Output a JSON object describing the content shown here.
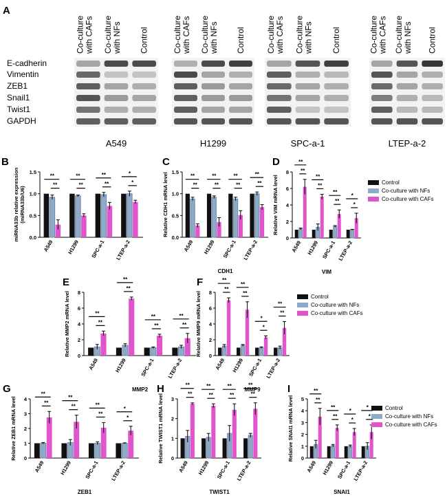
{
  "figure": {
    "colors": {
      "control": "#111111",
      "nfs": "#8fa9c9",
      "cafs": "#e055cc",
      "axis": "#000000"
    },
    "significance_label": "**",
    "legend_labels": [
      "Control",
      "Co-culture with NFs",
      "Co-culture with CAFs"
    ]
  },
  "blot": {
    "panel_letter": "A",
    "lane_labels": [
      "Co-culture with CAFs",
      "Co-culture with NFs",
      "Control"
    ],
    "protein_labels": [
      "E-cadherin",
      "Vimentin",
      "ZEB1",
      "Snail1",
      "Twist1",
      "GAPDH"
    ],
    "cell_lines": [
      "A549",
      "H1299",
      "SPC-a-1",
      "LTEP-a-2"
    ],
    "band_intensities": [
      [
        [
          0.35,
          0.8,
          0.8
        ],
        [
          0.65,
          0.2,
          0.2
        ],
        [
          0.7,
          0.35,
          0.3
        ],
        [
          0.75,
          0.4,
          0.35
        ],
        [
          0.6,
          0.3,
          0.3
        ],
        [
          0.7,
          0.7,
          0.7
        ]
      ],
      [
        [
          0.3,
          0.8,
          0.85
        ],
        [
          0.8,
          0.35,
          0.3
        ],
        [
          0.7,
          0.4,
          0.35
        ],
        [
          0.7,
          0.4,
          0.4
        ],
        [
          0.7,
          0.35,
          0.35
        ],
        [
          0.75,
          0.75,
          0.75
        ]
      ],
      [
        [
          0.35,
          0.75,
          0.85
        ],
        [
          0.7,
          0.3,
          0.25
        ],
        [
          0.65,
          0.35,
          0.3
        ],
        [
          0.6,
          0.35,
          0.3
        ],
        [
          0.7,
          0.2,
          0.2
        ],
        [
          0.75,
          0.75,
          0.75
        ]
      ],
      [
        [
          0.35,
          0.75,
          0.9
        ],
        [
          0.75,
          0.35,
          0.3
        ],
        [
          0.65,
          0.35,
          0.3
        ],
        [
          0.55,
          0.3,
          0.25
        ],
        [
          0.7,
          0.25,
          0.25
        ],
        [
          0.75,
          0.75,
          0.75
        ]
      ]
    ]
  },
  "chart_data": [
    {
      "type": "bar",
      "panel": "B",
      "categories": [
        "A549",
        "H1299",
        "SPC-a-1",
        "LTEP-a-2"
      ],
      "series": [
        {
          "name": "Control",
          "values": [
            1.0,
            1.0,
            1.0,
            1.0
          ],
          "errors": [
            0,
            0,
            0,
            0
          ]
        },
        {
          "name": "Co-culture with NFs",
          "values": [
            0.92,
            0.95,
            0.98,
            1.0
          ],
          "errors": [
            0.05,
            0.02,
            0.05,
            0.06
          ]
        },
        {
          "name": "Co-culture with CAFs",
          "values": [
            0.29,
            0.5,
            0.72,
            0.81
          ],
          "errors": [
            0.11,
            0.04,
            0.08,
            0.04
          ]
        }
      ],
      "ylabel": "miRNA33b relative expression (miRNA33b/U6)",
      "ylabel_lines": [
        "miRNA33b relative expression",
        "(miRNA33b/U6)"
      ],
      "xlabel": "",
      "ylim": [
        0,
        1.5
      ],
      "yticks": [
        "0.0",
        "0.5",
        "1.0",
        "1.5"
      ],
      "significance": [
        [
          "**",
          "**"
        ],
        [
          "**",
          "**"
        ],
        [
          "**",
          "**"
        ],
        [
          "*",
          "*"
        ]
      ]
    },
    {
      "type": "bar",
      "panel": "C",
      "categories": [
        "A549",
        "H1299",
        "SPC-a-1",
        "LTEP-a-2"
      ],
      "series": [
        {
          "name": "Control",
          "values": [
            1.0,
            1.0,
            1.0,
            1.0
          ],
          "errors": [
            0,
            0,
            0,
            0
          ]
        },
        {
          "name": "Co-culture with NFs",
          "values": [
            0.88,
            0.92,
            0.88,
            1.0
          ],
          "errors": [
            0.04,
            0.03,
            0.04,
            0.04
          ]
        },
        {
          "name": "Co-culture with CAFs",
          "values": [
            0.27,
            0.35,
            0.51,
            0.69
          ],
          "errors": [
            0.04,
            0.1,
            0.1,
            0.06
          ]
        }
      ],
      "ylabel": "Relative CDH1 mRNA level",
      "xlabel": "CDH1",
      "ylim": [
        0,
        1.5
      ],
      "yticks": [
        "0.0",
        "0.5",
        "1.0",
        "1.5"
      ],
      "significance": [
        [
          "**",
          "**"
        ],
        [
          "**",
          "**"
        ],
        [
          "**",
          "**"
        ],
        [
          "**",
          "**"
        ]
      ]
    },
    {
      "type": "bar",
      "panel": "D",
      "categories": [
        "A549",
        "H1299",
        "SPC-a-1",
        "LTEP-a-2"
      ],
      "series": [
        {
          "name": "Control",
          "values": [
            1.0,
            1.0,
            1.0,
            1.0
          ],
          "errors": [
            0,
            0,
            0,
            0
          ]
        },
        {
          "name": "Co-culture with NFs",
          "values": [
            1.1,
            1.3,
            1.4,
            1.0
          ],
          "errors": [
            0.1,
            0.4,
            0.1,
            0.05
          ]
        },
        {
          "name": "Co-culture with CAFs",
          "values": [
            6.2,
            5.0,
            2.9,
            2.4
          ],
          "errors": [
            0.9,
            0.3,
            0.5,
            0.6
          ]
        }
      ],
      "ylabel": "Relative VIM mRNA level",
      "xlabel": "VIM",
      "ylim": [
        0,
        8
      ],
      "yticks": [
        "0",
        "2",
        "4",
        "6",
        "8"
      ],
      "significance": [
        [
          "**",
          "**"
        ],
        [
          "**",
          "**"
        ],
        [
          "**",
          "**"
        ],
        [
          "*",
          "*"
        ]
      ]
    },
    {
      "type": "bar",
      "panel": "E",
      "categories": [
        "A549",
        "H1299",
        "SPC-a-1",
        "LTEP-a-2"
      ],
      "series": [
        {
          "name": "Control",
          "values": [
            1.0,
            1.0,
            1.0,
            1.0
          ],
          "errors": [
            0,
            0,
            0,
            0
          ]
        },
        {
          "name": "Co-culture with NFs",
          "values": [
            1.1,
            1.3,
            1.0,
            1.1
          ],
          "errors": [
            0.3,
            0.2,
            0.1,
            0.2
          ]
        },
        {
          "name": "Co-culture with CAFs",
          "values": [
            2.8,
            7.2,
            2.5,
            2.2
          ],
          "errors": [
            0.3,
            0.2,
            0.2,
            0.6
          ]
        }
      ],
      "ylabel": "Relative MMP2 mRNA level",
      "xlabel": "MMP2",
      "ylim": [
        0,
        8
      ],
      "yticks": [
        "0",
        "2",
        "4",
        "6",
        "8"
      ],
      "significance": [
        [
          "**",
          "**"
        ],
        [
          "**",
          "**"
        ],
        [
          "**",
          "**"
        ],
        [
          "**",
          "**"
        ]
      ]
    },
    {
      "type": "bar",
      "panel": "F",
      "categories": [
        "A549",
        "H1299",
        "SPC-a-1",
        "LTEP-a-2"
      ],
      "series": [
        {
          "name": "Control",
          "values": [
            1.0,
            1.0,
            1.0,
            1.0
          ],
          "errors": [
            0,
            0,
            0,
            0
          ]
        },
        {
          "name": "Co-culture with NFs",
          "values": [
            1.2,
            1.3,
            1.0,
            1.0
          ],
          "errors": [
            0.2,
            0.1,
            0.1,
            0.2
          ]
        },
        {
          "name": "Co-culture with CAFs",
          "values": [
            7.0,
            5.8,
            2.3,
            3.5
          ],
          "errors": [
            0.3,
            1.0,
            0.2,
            0.8
          ]
        }
      ],
      "ylabel": "Relative MMP9 mRNA level",
      "xlabel": "MMP9",
      "ylim": [
        0,
        8
      ],
      "yticks": [
        "0",
        "2",
        "4",
        "6",
        "8"
      ],
      "significance": [
        [
          "**",
          "**"
        ],
        [
          "**",
          "**"
        ],
        [
          "*",
          "*"
        ],
        [
          "**",
          "**"
        ]
      ]
    },
    {
      "type": "bar",
      "panel": "G",
      "categories": [
        "A549",
        "H1299",
        "SPC-a-1",
        "LTEP-a-2"
      ],
      "series": [
        {
          "name": "Control",
          "values": [
            1.0,
            1.0,
            1.0,
            1.0
          ],
          "errors": [
            0,
            0,
            0,
            0
          ]
        },
        {
          "name": "Co-culture with NFs",
          "values": [
            1.0,
            1.05,
            1.0,
            1.0
          ],
          "errors": [
            0.05,
            0.2,
            0.1,
            0.03
          ]
        },
        {
          "name": "Co-culture with CAFs",
          "values": [
            2.75,
            2.45,
            2.05,
            1.85
          ],
          "errors": [
            0.4,
            0.45,
            0.35,
            0.3
          ]
        }
      ],
      "ylabel": "Relative ZEB1 mRNA level",
      "xlabel": "ZEB1",
      "ylim": [
        0,
        4
      ],
      "yticks": [
        "0",
        "1",
        "2",
        "3",
        "4"
      ],
      "significance": [
        [
          "**",
          "**"
        ],
        [
          "**",
          "**"
        ],
        [
          "**",
          "**"
        ],
        [
          "*",
          "*"
        ]
      ]
    },
    {
      "type": "bar",
      "panel": "H",
      "categories": [
        "A549",
        "H1299",
        "SPC-a-1",
        "LTEP-a-2"
      ],
      "series": [
        {
          "name": "Control",
          "values": [
            1.0,
            1.0,
            1.0,
            1.0
          ],
          "errors": [
            0,
            0,
            0,
            0
          ]
        },
        {
          "name": "Co-culture with NFs",
          "values": [
            1.1,
            1.05,
            1.25,
            1.15
          ],
          "errors": [
            0.3,
            0.2,
            0.4,
            0.1
          ]
        },
        {
          "name": "Co-culture with CAFs",
          "values": [
            2.75,
            2.65,
            2.45,
            2.5
          ],
          "errors": [
            0.05,
            0.1,
            0.3,
            0.3
          ]
        }
      ],
      "ylabel": "Relative TWIST1 mRNA level",
      "xlabel": "TWIST1",
      "ylim": [
        0,
        3
      ],
      "yticks": [
        "0",
        "1",
        "2",
        "3"
      ],
      "significance": [
        [
          "**",
          "**"
        ],
        [
          "**",
          "**"
        ],
        [
          "**",
          "**"
        ],
        [
          "**",
          "**"
        ]
      ]
    },
    {
      "type": "bar",
      "panel": "I",
      "categories": [
        "A549",
        "H1299",
        "SPC-a-1",
        "LTEP-a-2"
      ],
      "series": [
        {
          "name": "Control",
          "values": [
            1.0,
            1.0,
            1.0,
            1.0
          ],
          "errors": [
            0,
            0,
            0,
            0
          ]
        },
        {
          "name": "Co-culture with NFs",
          "values": [
            1.15,
            1.05,
            1.0,
            1.0
          ],
          "errors": [
            0.35,
            0.1,
            0.1,
            0.3
          ]
        },
        {
          "name": "Co-culture with CAFs",
          "values": [
            3.5,
            2.55,
            2.2,
            2.2
          ],
          "errors": [
            0.7,
            0.25,
            0.3,
            0.6
          ]
        }
      ],
      "ylabel": "Relative SNAI1 mRNA level",
      "xlabel": "SNAI1",
      "ylim": [
        0,
        5
      ],
      "yticks": [
        "0",
        "1",
        "2",
        "3",
        "4",
        "5"
      ],
      "significance": [
        [
          "**",
          "**"
        ],
        [
          "**",
          "**"
        ],
        [
          "*",
          "*"
        ],
        [
          "*",
          "*"
        ]
      ]
    }
  ]
}
